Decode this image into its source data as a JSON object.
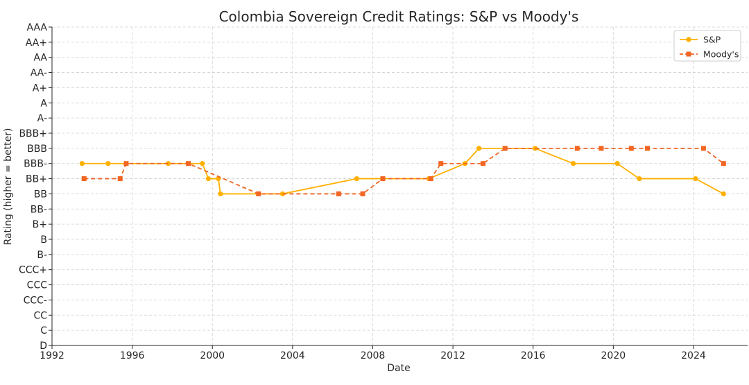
{
  "chart_data": {
    "type": "line",
    "title": "Colombia Sovereign Credit Ratings: S&P vs Moody's",
    "xlabel": "Date",
    "ylabel": "Rating (higher = better)",
    "xlim": [
      1992,
      2026.7
    ],
    "x_ticks": [
      1992,
      1996,
      2000,
      2004,
      2008,
      2012,
      2016,
      2020,
      2024
    ],
    "y_ticks": [
      "D",
      "C",
      "CC",
      "CCC-",
      "CCC",
      "CCC+",
      "B-",
      "B",
      "B+",
      "BB-",
      "BB",
      "BB+",
      "BBB-",
      "BBB",
      "BBB+",
      "A-",
      "A",
      "A+",
      "AA-",
      "AA",
      "AA+",
      "AAA"
    ],
    "grid": true,
    "legend_position": "top-right",
    "series": [
      {
        "name": "S&P",
        "color": "#FFB000",
        "line_style": "solid",
        "marker": "circle",
        "x": [
          1993.5,
          1994.8,
          1997.8,
          1999.5,
          1999.8,
          2000.3,
          2000.4,
          2003.5,
          2007.2,
          2010.8,
          2012.6,
          2013.3,
          2016.1,
          2018.0,
          2020.2,
          2021.3,
          2024.1,
          2025.5
        ],
        "y": [
          "BBB-",
          "BBB-",
          "BBB-",
          "BBB-",
          "BB+",
          "BB+",
          "BB",
          "BB",
          "BB+",
          "BB+",
          "BBB-",
          "BBB",
          "BBB",
          "BBB-",
          "BBB-",
          "BB+",
          "BB+",
          "BB"
        ]
      },
      {
        "name": "Moody's",
        "color": "#F26522",
        "line_style": "dashed",
        "marker": "square",
        "x": [
          1993.6,
          1995.4,
          1995.7,
          1998.8,
          2002.3,
          2006.3,
          2007.5,
          2008.5,
          2010.9,
          2011.4,
          2013.5,
          2014.6,
          2018.2,
          2019.4,
          2020.9,
          2021.7,
          2024.5,
          2025.5
        ],
        "y": [
          "BB+",
          "BB+",
          "BBB-",
          "BBB-",
          "BB",
          "BB",
          "BB",
          "BB+",
          "BB+",
          "BBB-",
          "BBB-",
          "BBB",
          "BBB",
          "BBB",
          "BBB",
          "BBB",
          "BBB",
          "BBB-"
        ]
      }
    ]
  }
}
